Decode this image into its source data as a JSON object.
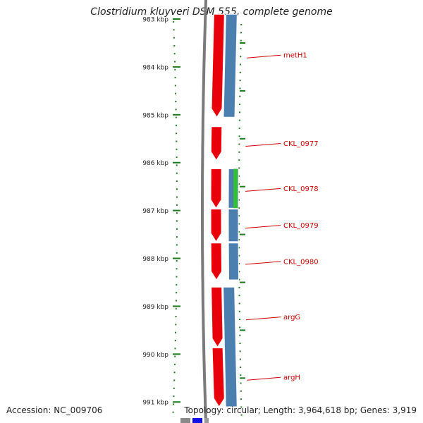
{
  "title": "Clostridium kluyveri DSM 555, complete genome",
  "accession_text": "Accession: NC_009706",
  "stats_text": "Topology: circular; Length: 3,964,618 bp; Genes: 3,919",
  "ruler": {
    "ticks": [
      {
        "kbp": 983,
        "label": "983 kbp"
      },
      {
        "kbp": 984,
        "label": "984 kbp"
      },
      {
        "kbp": 985,
        "label": "985 kbp"
      },
      {
        "kbp": 986,
        "label": "986 kbp"
      },
      {
        "kbp": 987,
        "label": "987 kbp"
      },
      {
        "kbp": 988,
        "label": "988 kbp"
      },
      {
        "kbp": 989,
        "label": "989 kbp"
      },
      {
        "kbp": 990,
        "label": "990 kbp"
      },
      {
        "kbp": 991,
        "label": "991 kbp"
      }
    ]
  },
  "colors": {
    "forward_feature": "#e8000b",
    "cds_blue": "#4a7fb0",
    "cds_green": "#33c033",
    "backbone": "#7a7a7a",
    "tick_green": "#1f7a1f",
    "label_red": "#cc0000"
  },
  "features": [
    {
      "name": "metH1",
      "start_kbp": 982.9,
      "end_kbp": 985.05
    },
    {
      "name": "CKL_0977",
      "start_kbp": 985.25,
      "end_kbp": 985.95
    },
    {
      "name": "CKL_0978",
      "start_kbp": 986.13,
      "end_kbp": 986.95
    },
    {
      "name": "CKL_0979",
      "start_kbp": 986.97,
      "end_kbp": 987.65
    },
    {
      "name": "CKL_0980",
      "start_kbp": 987.68,
      "end_kbp": 988.45
    },
    {
      "name": "argG",
      "start_kbp": 988.6,
      "end_kbp": 989.85
    },
    {
      "name": "argH",
      "start_kbp": 989.87,
      "end_kbp": 991.1
    }
  ],
  "blue_blocks": [
    {
      "start_kbp": 982.9,
      "end_kbp": 985.05
    },
    {
      "start_kbp": 986.13,
      "end_kbp": 986.95
    },
    {
      "start_kbp": 986.97,
      "end_kbp": 987.65
    },
    {
      "start_kbp": 987.68,
      "end_kbp": 988.45
    },
    {
      "start_kbp": 988.6,
      "end_kbp": 991.1
    }
  ],
  "green_blocks": [
    {
      "start_kbp": 986.13,
      "end_kbp": 986.95
    }
  ]
}
